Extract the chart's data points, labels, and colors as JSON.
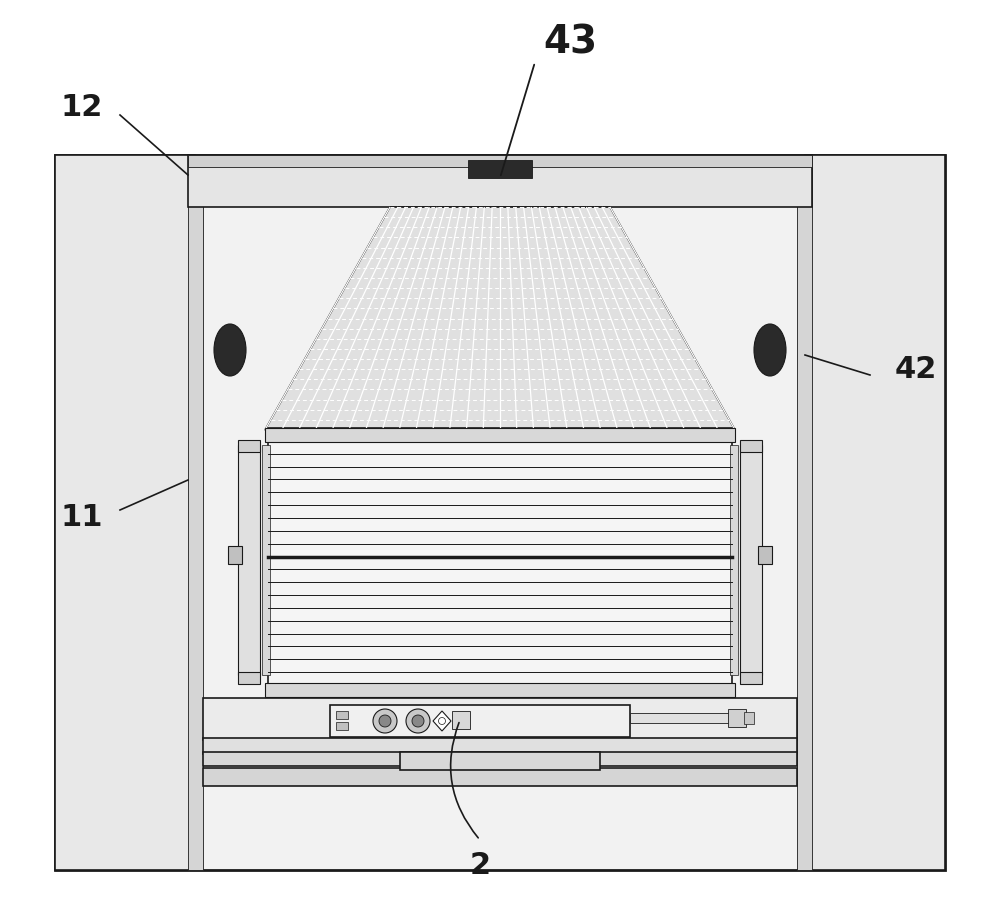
{
  "bg_color": "#ffffff",
  "line_color": "#1a1a1a",
  "dark_fill": "#2a2a2a",
  "gray_fill": "#d8d8d8",
  "light_gray": "#eeeeee",
  "mid_gray": "#c0c0c0",
  "fig_width": 10.0,
  "fig_height": 9.07,
  "label_43": "43",
  "label_42": "42",
  "label_12": "12",
  "label_11": "11",
  "label_2": "2"
}
